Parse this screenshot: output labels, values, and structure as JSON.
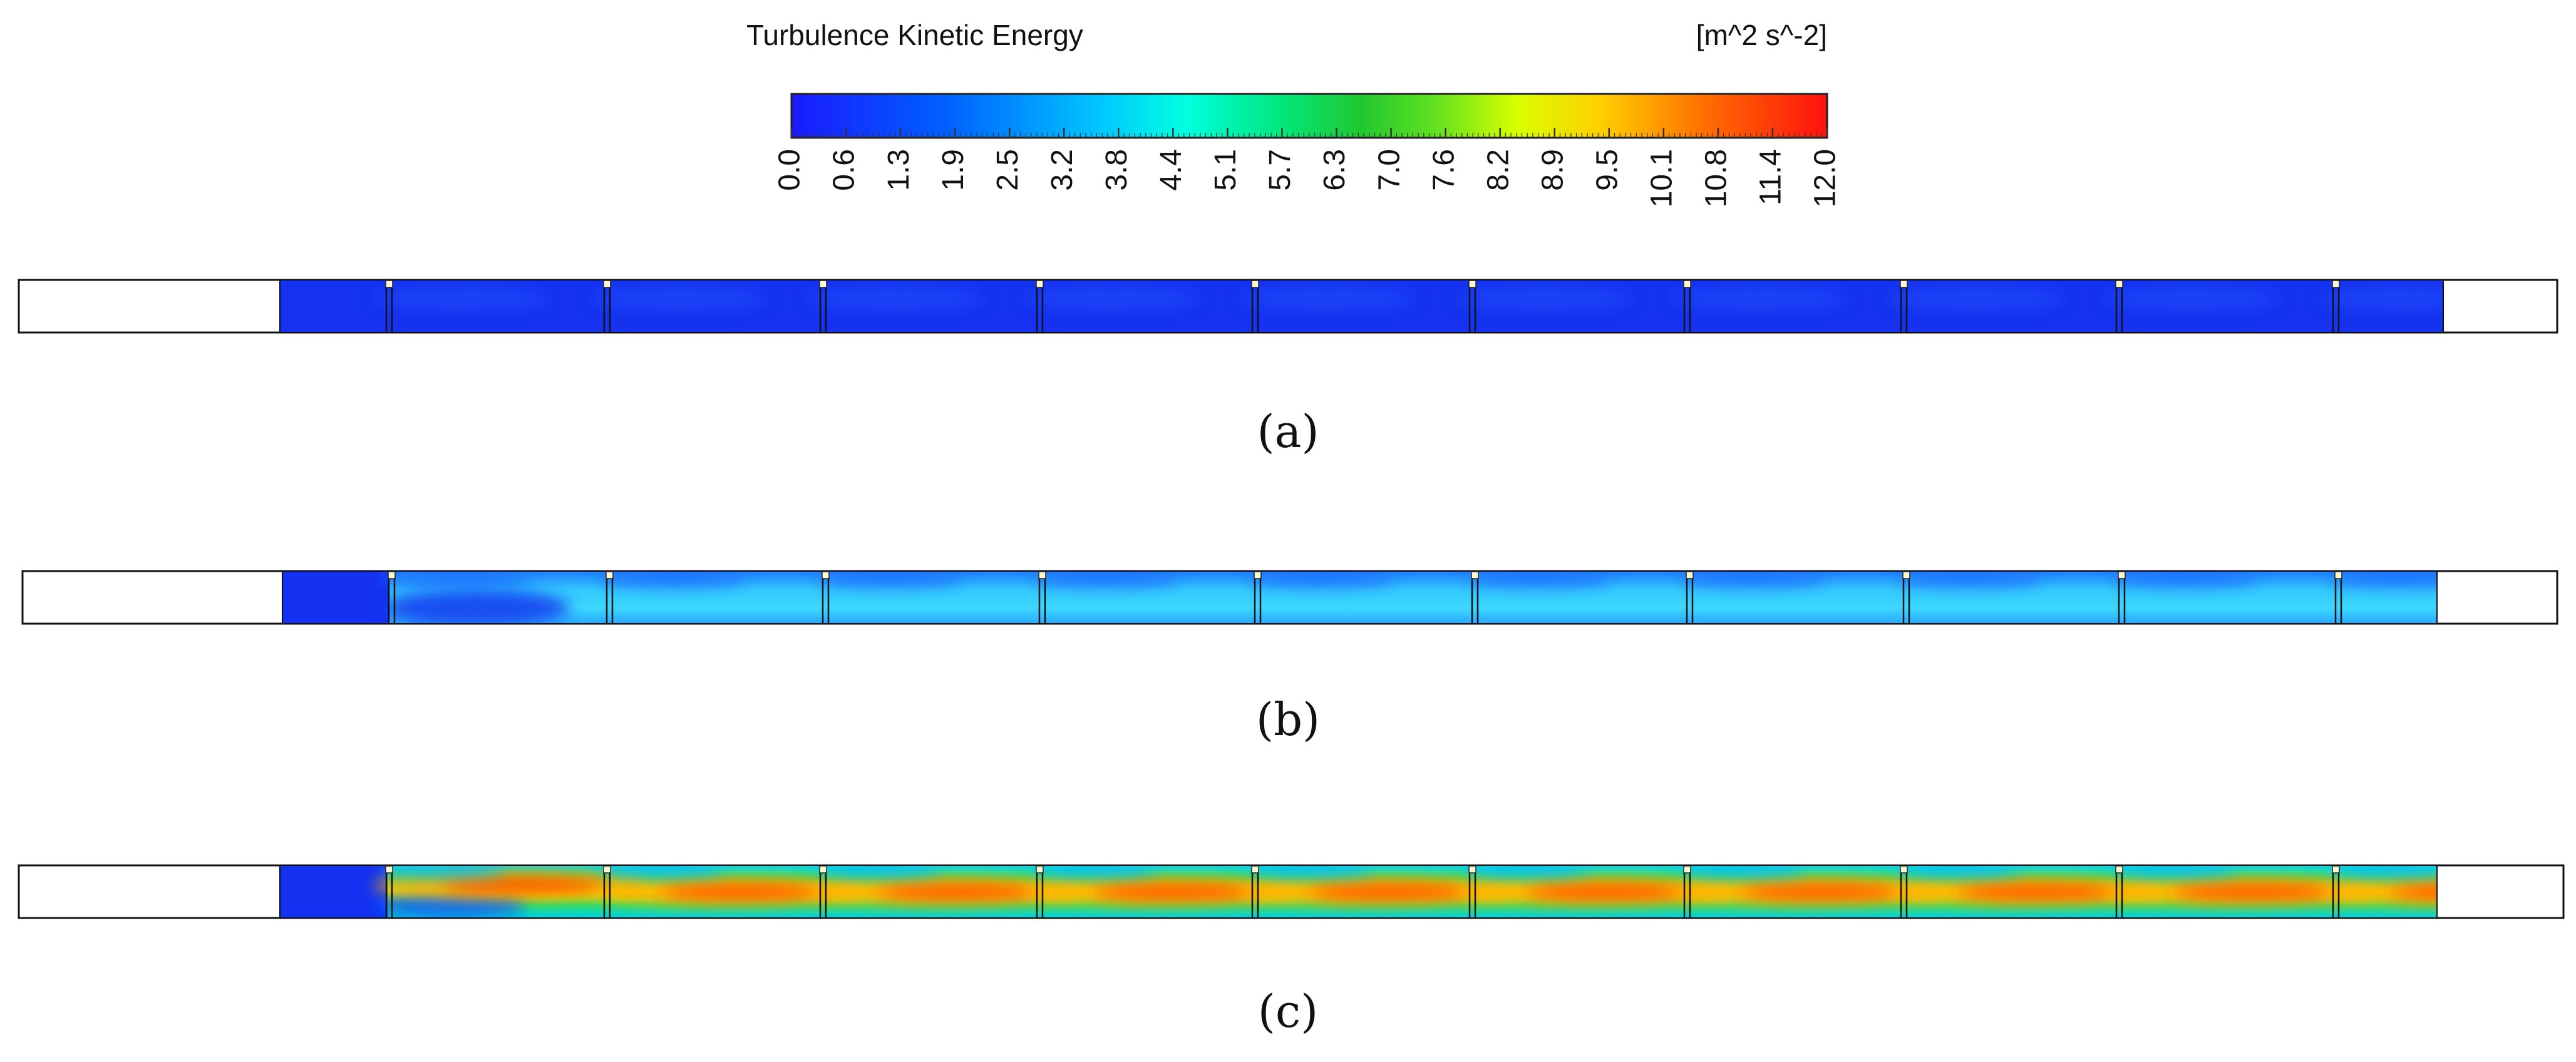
{
  "legend": {
    "title": "Turbulence Kinetic Energy",
    "units": "[m^2 s^-2]",
    "ticks": [
      "0.0",
      "0.6",
      "1.3",
      "1.9",
      "2.5",
      "3.2",
      "3.8",
      "4.4",
      "5.1",
      "5.7",
      "6.3",
      "7.0",
      "7.6",
      "8.2",
      "8.9",
      "9.5",
      "10.1",
      "10.8",
      "11.4",
      "12.0"
    ],
    "colors": [
      "#1a1aff",
      "#0066ff",
      "#00a8ff",
      "#00e8ff",
      "#00ffd0",
      "#00f080",
      "#20d040",
      "#80e020",
      "#e0ff00",
      "#ffd000",
      "#ff8000",
      "#ff2000"
    ]
  },
  "panels": [
    {
      "caption": "(a)",
      "baffle_count": 10
    },
    {
      "caption": "(b)",
      "baffle_count": 10
    },
    {
      "caption": "(c)",
      "baffle_count": 10
    }
  ]
}
